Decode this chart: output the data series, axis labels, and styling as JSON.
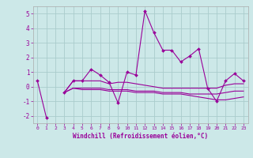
{
  "x": [
    0,
    1,
    2,
    3,
    4,
    5,
    6,
    7,
    8,
    9,
    10,
    11,
    12,
    13,
    14,
    15,
    16,
    17,
    18,
    19,
    20,
    21,
    22,
    23
  ],
  "line1": [
    0.4,
    -2.1,
    null,
    -0.4,
    0.4,
    0.4,
    1.2,
    0.8,
    0.3,
    -1.1,
    1.0,
    0.8,
    5.2,
    3.7,
    2.5,
    2.5,
    1.7,
    2.1,
    2.6,
    -0.1,
    -1.0,
    0.4,
    0.9,
    0.4
  ],
  "line2": [
    0.4,
    null,
    null,
    -0.4,
    0.4,
    0.4,
    0.4,
    0.4,
    0.2,
    0.3,
    0.3,
    0.2,
    0.1,
    0.0,
    -0.1,
    -0.1,
    -0.1,
    -0.1,
    -0.1,
    -0.1,
    -0.1,
    0.1,
    0.2,
    0.2
  ],
  "line3": [
    0.4,
    null,
    null,
    -0.4,
    -0.1,
    -0.1,
    -0.1,
    -0.1,
    -0.2,
    -0.2,
    -0.2,
    -0.3,
    -0.3,
    -0.3,
    -0.4,
    -0.4,
    -0.4,
    -0.5,
    -0.5,
    -0.5,
    -0.5,
    -0.4,
    -0.3,
    -0.3
  ],
  "line4": [
    0.4,
    null,
    null,
    -0.4,
    -0.1,
    -0.2,
    -0.2,
    -0.2,
    -0.3,
    -0.3,
    -0.3,
    -0.4,
    -0.4,
    -0.4,
    -0.5,
    -0.5,
    -0.5,
    -0.6,
    -0.7,
    -0.8,
    -0.9,
    -0.9,
    -0.8,
    -0.7
  ],
  "line_color": "#990099",
  "bg_color": "#cce8e8",
  "grid_color": "#aacccc",
  "xlabel": "Windchill (Refroidissement éolien,°C)",
  "ylim": [
    -2.5,
    5.5
  ],
  "xlim": [
    -0.5,
    23.5
  ],
  "yticks": [
    -2,
    -1,
    0,
    1,
    2,
    3,
    4,
    5
  ],
  "xticks": [
    0,
    1,
    2,
    3,
    4,
    5,
    6,
    7,
    8,
    9,
    10,
    11,
    12,
    13,
    14,
    15,
    16,
    17,
    18,
    19,
    20,
    21,
    22,
    23
  ]
}
